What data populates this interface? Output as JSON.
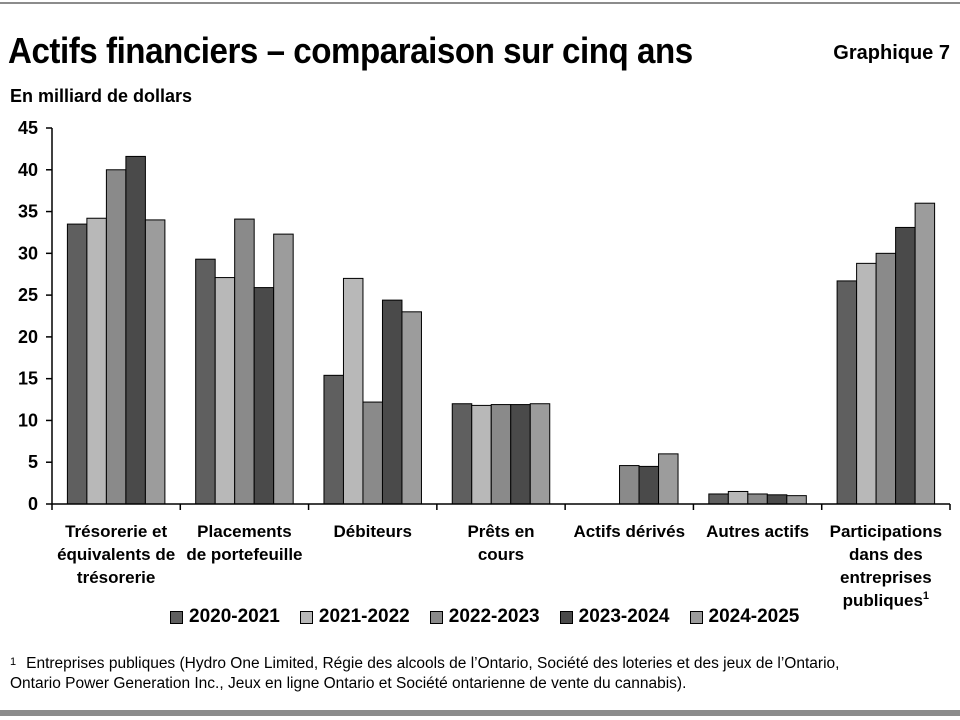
{
  "header": {
    "title": "Actifs financiers – comparaison sur cinq ans",
    "graph_label": "Graphique 7",
    "unit_label": "En milliard de dollars"
  },
  "colors": {
    "series": [
      "#5f5f5f",
      "#b8b8b8",
      "#8a8a8a",
      "#4a4a4a",
      "#9c9c9c"
    ],
    "axis": "#000000"
  },
  "chart_data": {
    "type": "bar",
    "title": "Actifs financiers – comparaison sur cinq ans",
    "ylabel": "En milliard de dollars",
    "xlabel": "",
    "ylim": [
      0,
      45
    ],
    "yticks": [
      0,
      5,
      10,
      15,
      20,
      25,
      30,
      35,
      40,
      45
    ],
    "grid": false,
    "legend_position": "bottom",
    "categories": [
      {
        "lines": [
          "Trésorerie et",
          "équivalents de",
          "trésorerie"
        ],
        "sup": ""
      },
      {
        "lines": [
          "Placements",
          "de portefeuille"
        ],
        "sup": ""
      },
      {
        "lines": [
          "Débiteurs"
        ],
        "sup": ""
      },
      {
        "lines": [
          "Prêts en",
          "cours"
        ],
        "sup": ""
      },
      {
        "lines": [
          "Actifs dérivés"
        ],
        "sup": ""
      },
      {
        "lines": [
          "Autres actifs"
        ],
        "sup": ""
      },
      {
        "lines": [
          "Participations",
          "dans des",
          "entreprises",
          "publiques"
        ],
        "sup": "1"
      }
    ],
    "series": [
      {
        "name": "2020-2021",
        "values": [
          33.5,
          29.3,
          15.4,
          12.0,
          0,
          1.2,
          26.7
        ]
      },
      {
        "name": "2021-2022",
        "values": [
          34.2,
          27.1,
          27.0,
          11.8,
          0,
          1.5,
          28.8
        ]
      },
      {
        "name": "2022-2023",
        "values": [
          40.0,
          34.1,
          12.2,
          11.9,
          4.6,
          1.2,
          30.0
        ]
      },
      {
        "name": "2023-2024",
        "values": [
          41.6,
          25.9,
          24.4,
          11.9,
          4.5,
          1.1,
          33.1
        ]
      },
      {
        "name": "2024-2025",
        "values": [
          34.0,
          32.3,
          23.0,
          12.0,
          6.0,
          1.0,
          36.0
        ]
      }
    ]
  },
  "footnote": {
    "mark": "1",
    "line1": "Entreprises publiques (Hydro One Limited, Régie des alcools de l’Ontario, Société des loteries et des jeux de l’Ontario,",
    "line2": "Ontario Power Generation Inc., Jeux en ligne Ontario et Société ontarienne de vente du cannabis)."
  }
}
